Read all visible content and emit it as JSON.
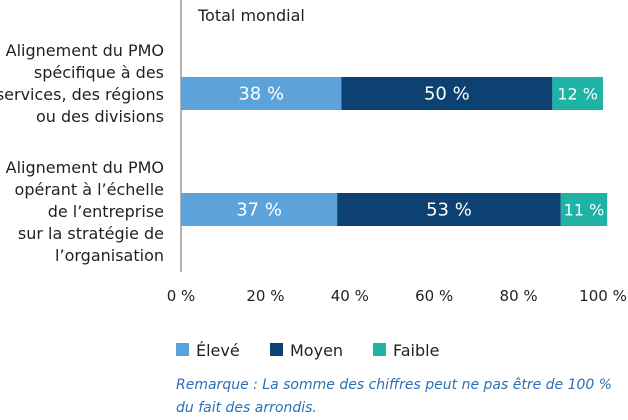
{
  "chart_data": {
    "type": "bar",
    "orientation": "horizontal",
    "stacked": true,
    "title": "Total mondial",
    "categories": [
      [
        "Alignement du PMO",
        "spécifique à des",
        "services, des régions",
        "ou des divisions"
      ],
      [
        "Alignement du PMO",
        "opérant à l’échelle",
        "de l’entreprise",
        "sur la stratégie de",
        "l’organisation"
      ]
    ],
    "series": [
      {
        "name": "Élevé",
        "values": [
          38,
          37
        ],
        "labels": [
          "38 %",
          "37 %"
        ],
        "color": "#5ba3da"
      },
      {
        "name": "Moyen",
        "values": [
          50,
          53
        ],
        "labels": [
          "50 %",
          "53 %"
        ],
        "color": "#0d4171"
      },
      {
        "name": "Faible",
        "values": [
          12,
          11
        ],
        "labels": [
          "12 %",
          "11 %"
        ],
        "color": "#1fb3a5"
      }
    ],
    "xlim": [
      0,
      100
    ],
    "xticks": [
      "0 %",
      "20 %",
      "40 %",
      "60 %",
      "80 %",
      "100 %"
    ],
    "grid": false,
    "legend_position": "bottom",
    "note": "Remarque : La somme des chiffres peut ne pas être de 100 % du fait des arrondis."
  }
}
